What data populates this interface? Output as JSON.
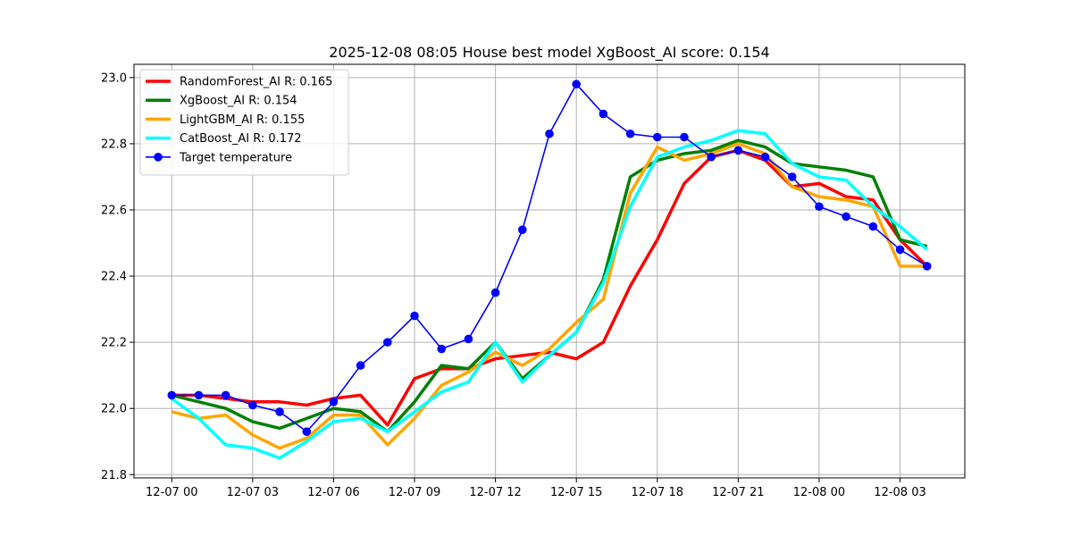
{
  "chart_data": {
    "type": "line",
    "title": "2025-12-08 08:05 House best model XgBoost_AI score: 0.154",
    "xlabel": "",
    "ylabel": "",
    "x_unit": "hour",
    "x": [
      0,
      1,
      2,
      3,
      4,
      5,
      6,
      7,
      8,
      9,
      10,
      11,
      12,
      13,
      14,
      15,
      16,
      17,
      18,
      19,
      20,
      21,
      22,
      23,
      24,
      25,
      26,
      27,
      28
    ],
    "xlim": [
      -1.4,
      29.4
    ],
    "ylim": [
      21.79,
      23.04
    ],
    "xticks": [
      {
        "value": 0,
        "label": "12-07 00"
      },
      {
        "value": 3,
        "label": "12-07 03"
      },
      {
        "value": 6,
        "label": "12-07 06"
      },
      {
        "value": 9,
        "label": "12-07 09"
      },
      {
        "value": 12,
        "label": "12-07 12"
      },
      {
        "value": 15,
        "label": "12-07 15"
      },
      {
        "value": 18,
        "label": "12-07 18"
      },
      {
        "value": 21,
        "label": "12-07 21"
      },
      {
        "value": 24,
        "label": "12-08 00"
      },
      {
        "value": 27,
        "label": "12-08 03"
      }
    ],
    "yticks": [
      {
        "value": 21.8,
        "label": "21.8"
      },
      {
        "value": 22.0,
        "label": "22.0"
      },
      {
        "value": 22.2,
        "label": "22.2"
      },
      {
        "value": 22.4,
        "label": "22.4"
      },
      {
        "value": 22.6,
        "label": "22.6"
      },
      {
        "value": 22.8,
        "label": "22.8"
      },
      {
        "value": 23.0,
        "label": "23.0"
      }
    ],
    "grid": true,
    "legend_position": "top-left",
    "series": [
      {
        "name": "RandomForest_AI R: 0.165",
        "color": "#ff0000",
        "marker": false,
        "values": [
          22.04,
          22.04,
          22.03,
          22.02,
          22.02,
          22.01,
          22.03,
          22.04,
          21.95,
          22.09,
          22.12,
          22.12,
          22.15,
          22.16,
          22.17,
          22.15,
          22.2,
          22.37,
          22.51,
          22.68,
          22.76,
          22.78,
          22.75,
          22.67,
          22.68,
          22.64,
          22.63,
          22.51,
          22.43
        ]
      },
      {
        "name": "XgBoost_AI R: 0.154",
        "color": "#008000",
        "marker": false,
        "values": [
          22.04,
          22.02,
          22.0,
          21.96,
          21.94,
          21.97,
          22.0,
          21.99,
          21.93,
          22.02,
          22.13,
          22.12,
          22.2,
          22.09,
          22.16,
          22.23,
          22.39,
          22.7,
          22.75,
          22.77,
          22.78,
          22.81,
          22.79,
          22.74,
          22.73,
          22.72,
          22.7,
          22.51,
          22.49
        ]
      },
      {
        "name": "LightGBM_AI R: 0.155",
        "color": "#ffa500",
        "marker": false,
        "values": [
          21.99,
          21.97,
          21.98,
          21.92,
          21.88,
          21.91,
          21.98,
          21.98,
          21.89,
          21.97,
          22.07,
          22.11,
          22.17,
          22.13,
          22.18,
          22.26,
          22.33,
          22.65,
          22.79,
          22.75,
          22.77,
          22.8,
          22.77,
          22.67,
          22.64,
          22.63,
          22.61,
          22.43,
          22.43
        ]
      },
      {
        "name": "CatBoost_AI R: 0.172",
        "color": "#00ffff",
        "marker": false,
        "values": [
          22.03,
          21.97,
          21.89,
          21.88,
          21.85,
          21.9,
          21.96,
          21.97,
          21.93,
          21.99,
          22.05,
          22.08,
          22.2,
          22.08,
          22.16,
          22.23,
          22.38,
          22.61,
          22.76,
          22.79,
          22.81,
          22.84,
          22.83,
          22.74,
          22.7,
          22.69,
          22.61,
          22.55,
          22.48
        ]
      },
      {
        "name": "Target temperature",
        "color": "#0000ff",
        "marker": true,
        "values": [
          22.04,
          22.04,
          22.04,
          22.01,
          21.99,
          21.93,
          22.02,
          22.13,
          22.2,
          22.28,
          22.18,
          22.21,
          22.35,
          22.54,
          22.83,
          22.98,
          22.89,
          22.83,
          22.82,
          22.82,
          22.76,
          22.78,
          22.76,
          22.7,
          22.61,
          22.58,
          22.55,
          22.48,
          22.43
        ]
      }
    ]
  }
}
